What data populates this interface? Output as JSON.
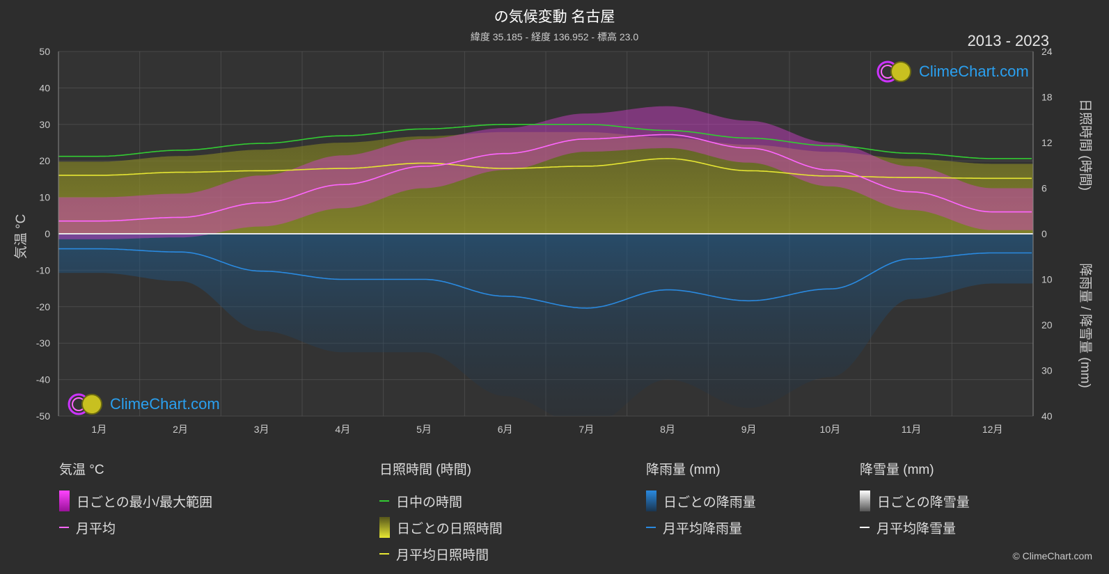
{
  "header": {
    "title": "の気候変動 名古屋",
    "subtitle": "緯度 35.185 - 経度 136.952 - 標高 23.0",
    "years": "2013 - 2023"
  },
  "logo": {
    "text": "ClimeChart.com"
  },
  "copyright": "© ClimeChart.com",
  "chart_data": {
    "type": "line",
    "categories": [
      "1月",
      "2月",
      "3月",
      "4月",
      "5月",
      "6月",
      "7月",
      "8月",
      "9月",
      "10月",
      "11月",
      "12月"
    ],
    "left_axis": {
      "label": "気温 °C",
      "range": [
        -50,
        50
      ],
      "ticks": [
        50,
        40,
        30,
        20,
        10,
        0,
        -10,
        -20,
        -30,
        -40,
        -50
      ]
    },
    "right_axis_top": {
      "label": "日照時間 (時間)",
      "range": [
        0,
        24
      ],
      "ticks": [
        24,
        18,
        12,
        6,
        0
      ]
    },
    "right_axis_bottom": {
      "label": "降雨量 / 降雪量 (mm)",
      "range": [
        0,
        40
      ],
      "ticks": [
        10,
        20,
        30,
        40
      ]
    },
    "grid": true,
    "series": [
      {
        "name": "日中の時間",
        "axis": "sunshine",
        "color": "#33cc33",
        "values": [
          10.2,
          11.0,
          11.9,
          12.9,
          13.8,
          14.4,
          14.4,
          13.6,
          12.6,
          11.6,
          10.6,
          9.9
        ]
      },
      {
        "name": "月平均日照時間",
        "axis": "sunshine",
        "color": "#e6e633",
        "values": [
          7.7,
          8.1,
          8.3,
          8.6,
          9.3,
          8.6,
          8.9,
          9.9,
          8.3,
          7.6,
          7.4,
          7.3
        ]
      },
      {
        "name": "月平均",
        "axis": "temperature",
        "color": "#ff66ff",
        "values": [
          3.5,
          4.5,
          8.5,
          13.5,
          18.5,
          22.0,
          26.0,
          27.2,
          23.5,
          17.5,
          11.5,
          6.0
        ]
      },
      {
        "name": "月平均降雨量",
        "axis": "precipitation",
        "color": "#2a8ae0",
        "values": [
          3.3,
          4.0,
          8.2,
          10.0,
          10.0,
          13.7,
          16.3,
          12.3,
          14.7,
          12.1,
          5.5,
          4.2
        ]
      },
      {
        "name": "月平均降雪量",
        "axis": "precipitation",
        "color": "#ffffff",
        "values": [
          0,
          0,
          0,
          0,
          0,
          0,
          0,
          0,
          0,
          0,
          0,
          0
        ]
      }
    ],
    "daily_temp_range": {
      "min": [
        -1.5,
        -1.0,
        2.0,
        7.0,
        12.5,
        17.5,
        22.5,
        23.5,
        19.5,
        13.0,
        6.5,
        1.0
      ],
      "max": [
        10.0,
        11.0,
        16.0,
        21.5,
        26.0,
        29.0,
        33.0,
        35.0,
        31.0,
        25.0,
        18.5,
        12.5
      ]
    },
    "legend": {
      "temperature": {
        "head": "気温 °C",
        "items": [
          "日ごとの最小/最大範囲",
          "月平均"
        ]
      },
      "sunshine": {
        "head": "日照時間 (時間)",
        "items": [
          "日中の時間",
          "日ごとの日照時間",
          "月平均日照時間"
        ]
      },
      "rain": {
        "head": "降雨量 (mm)",
        "items": [
          "日ごとの降雨量",
          "月平均降雨量"
        ]
      },
      "snow": {
        "head": "降雪量 (mm)",
        "items": [
          "日ごとの降雪量",
          "月平均降雪量"
        ]
      }
    }
  }
}
